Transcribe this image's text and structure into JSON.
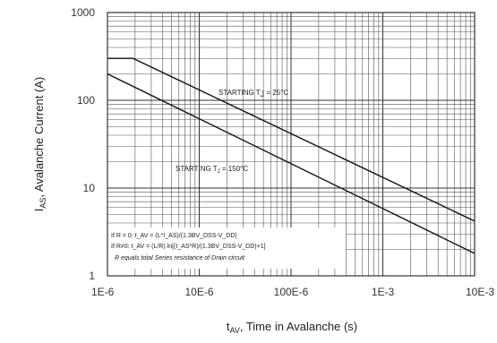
{
  "chart_data": {
    "type": "line",
    "x_scale": "log",
    "y_scale": "log",
    "xlim": [
      1e-06,
      0.01
    ],
    "ylim": [
      1,
      1000
    ],
    "grid": true,
    "x_ticks": [
      "1E-6",
      "10E-6",
      "100E-6",
      "1E-3",
      "10E-3"
    ],
    "y_ticks": [
      "1000",
      "100",
      "10",
      "1"
    ],
    "ylabel": {
      "main": "I",
      "sub": "AS",
      "rest": ", Avalanche Current (A)"
    },
    "xlabel": {
      "main": "t",
      "sub": "AV",
      "rest": ", Time in Avalanche (s)"
    },
    "series": [
      {
        "name": "STARTING T_J = 25°C",
        "label_parts": {
          "pre": "STARTING T",
          "sub": "J",
          "post": " = 25°C"
        },
        "x": [
          1e-06,
          1.9e-06,
          0.01
        ],
        "y": [
          300,
          300,
          4.2
        ]
      },
      {
        "name": "STARTING T_J = 150°C",
        "label_parts": {
          "pre": "STARTING T",
          "sub": "J",
          "post": " = 150°C"
        },
        "x": [
          1e-06,
          0.01
        ],
        "y": [
          200,
          1.8
        ]
      }
    ],
    "notes": [
      "If R = 0: t_AV = (L*I_AS)/(1.3BV_DSS-V_DD)",
      "If R≠0: t_AV = (L/R) ln[(I_AS*R)/(1.3BV_DSS-V_DD)+1]",
      "R equals total Series resistance of Drain circuit"
    ]
  }
}
